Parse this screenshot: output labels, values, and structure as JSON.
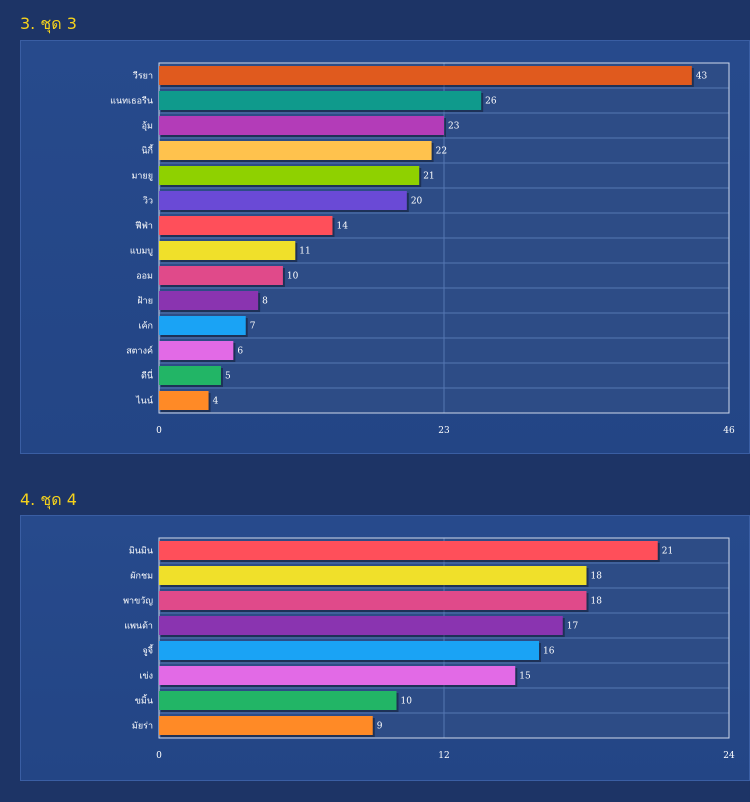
{
  "sections": [
    {
      "title": "3. ชุด 3"
    },
    {
      "title": "4. ชุด 4"
    }
  ],
  "chart_data": [
    {
      "type": "bar",
      "orientation": "horizontal",
      "categories": [
        "วีรยา",
        "แนทเธอรีน",
        "อุ้ม",
        "นิกี้",
        "มายยู",
        "วิว",
        "ฟีฟ่า",
        "แบมบู",
        "ออม",
        "ฝ้าย",
        "เค้ก",
        "สตางค์",
        "ดีนี่",
        "ไนน์"
      ],
      "values": [
        43,
        26,
        23,
        22,
        21,
        20,
        14,
        11,
        10,
        8,
        7,
        6,
        5,
        4
      ],
      "colors": [
        "#e05a1e",
        "#0f9a8c",
        "#b33cb8",
        "#ffc24d",
        "#8fd100",
        "#6a4ad6",
        "#ff4f5a",
        "#f0e02a",
        "#e04a8a",
        "#8a34b0",
        "#1aa3f5",
        "#e26ae6",
        "#22b566",
        "#ff8a26"
      ],
      "xlim": [
        0,
        46
      ],
      "xticks": [
        "0",
        "23",
        "46"
      ],
      "grid": true
    },
    {
      "type": "bar",
      "orientation": "horizontal",
      "categories": [
        "มินมิน",
        "ผักชม",
        "พาขวัญ",
        "แพนด้า",
        "จูจี้",
        "เข่ง",
        "ขมิ้น",
        "มัยร่า"
      ],
      "values": [
        21,
        18,
        18,
        17,
        16,
        15,
        10,
        9
      ],
      "colors": [
        "#ff4f5a",
        "#f0e02a",
        "#e04a8a",
        "#8a34b0",
        "#1aa3f5",
        "#e26ae6",
        "#22b566",
        "#ff8a26"
      ],
      "xlim": [
        0,
        24
      ],
      "xticks": [
        "0",
        "12",
        "24"
      ],
      "grid": true
    }
  ]
}
